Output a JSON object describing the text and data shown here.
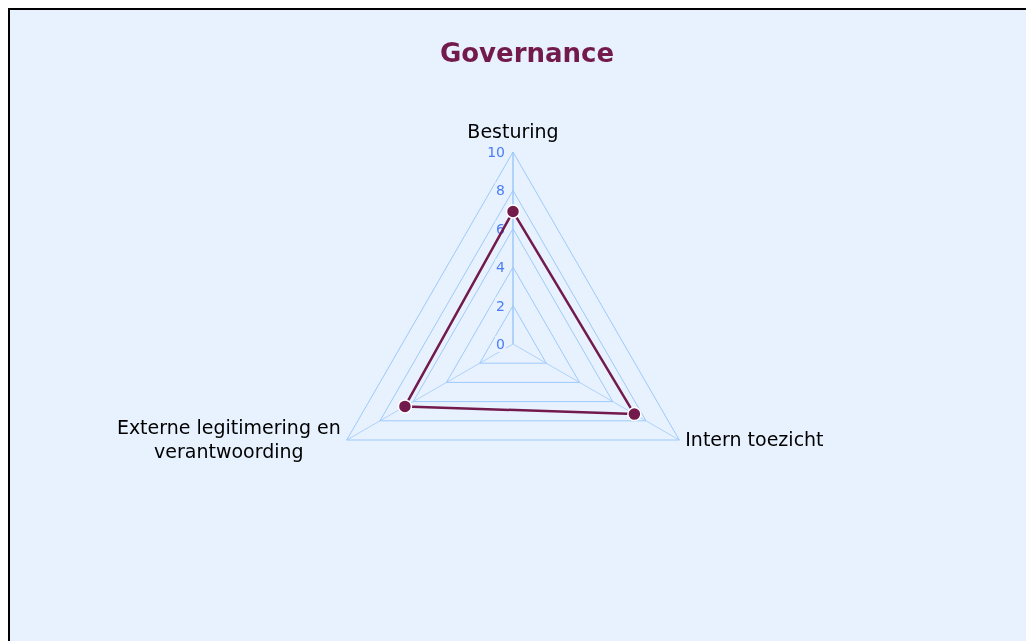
{
  "chart_data": {
    "type": "radar",
    "title": "Governance",
    "categories": [
      "Besturing",
      "Intern toezicht",
      "Externe legitimering en verantwoording"
    ],
    "series": [
      {
        "color": "#731a4d",
        "values": [
          6.9,
          7.3,
          6.5
        ]
      }
    ],
    "ylim": [
      0,
      10
    ],
    "yticks": [
      0,
      2,
      4,
      6,
      8,
      10
    ],
    "grid": true,
    "marker": "circle"
  }
}
